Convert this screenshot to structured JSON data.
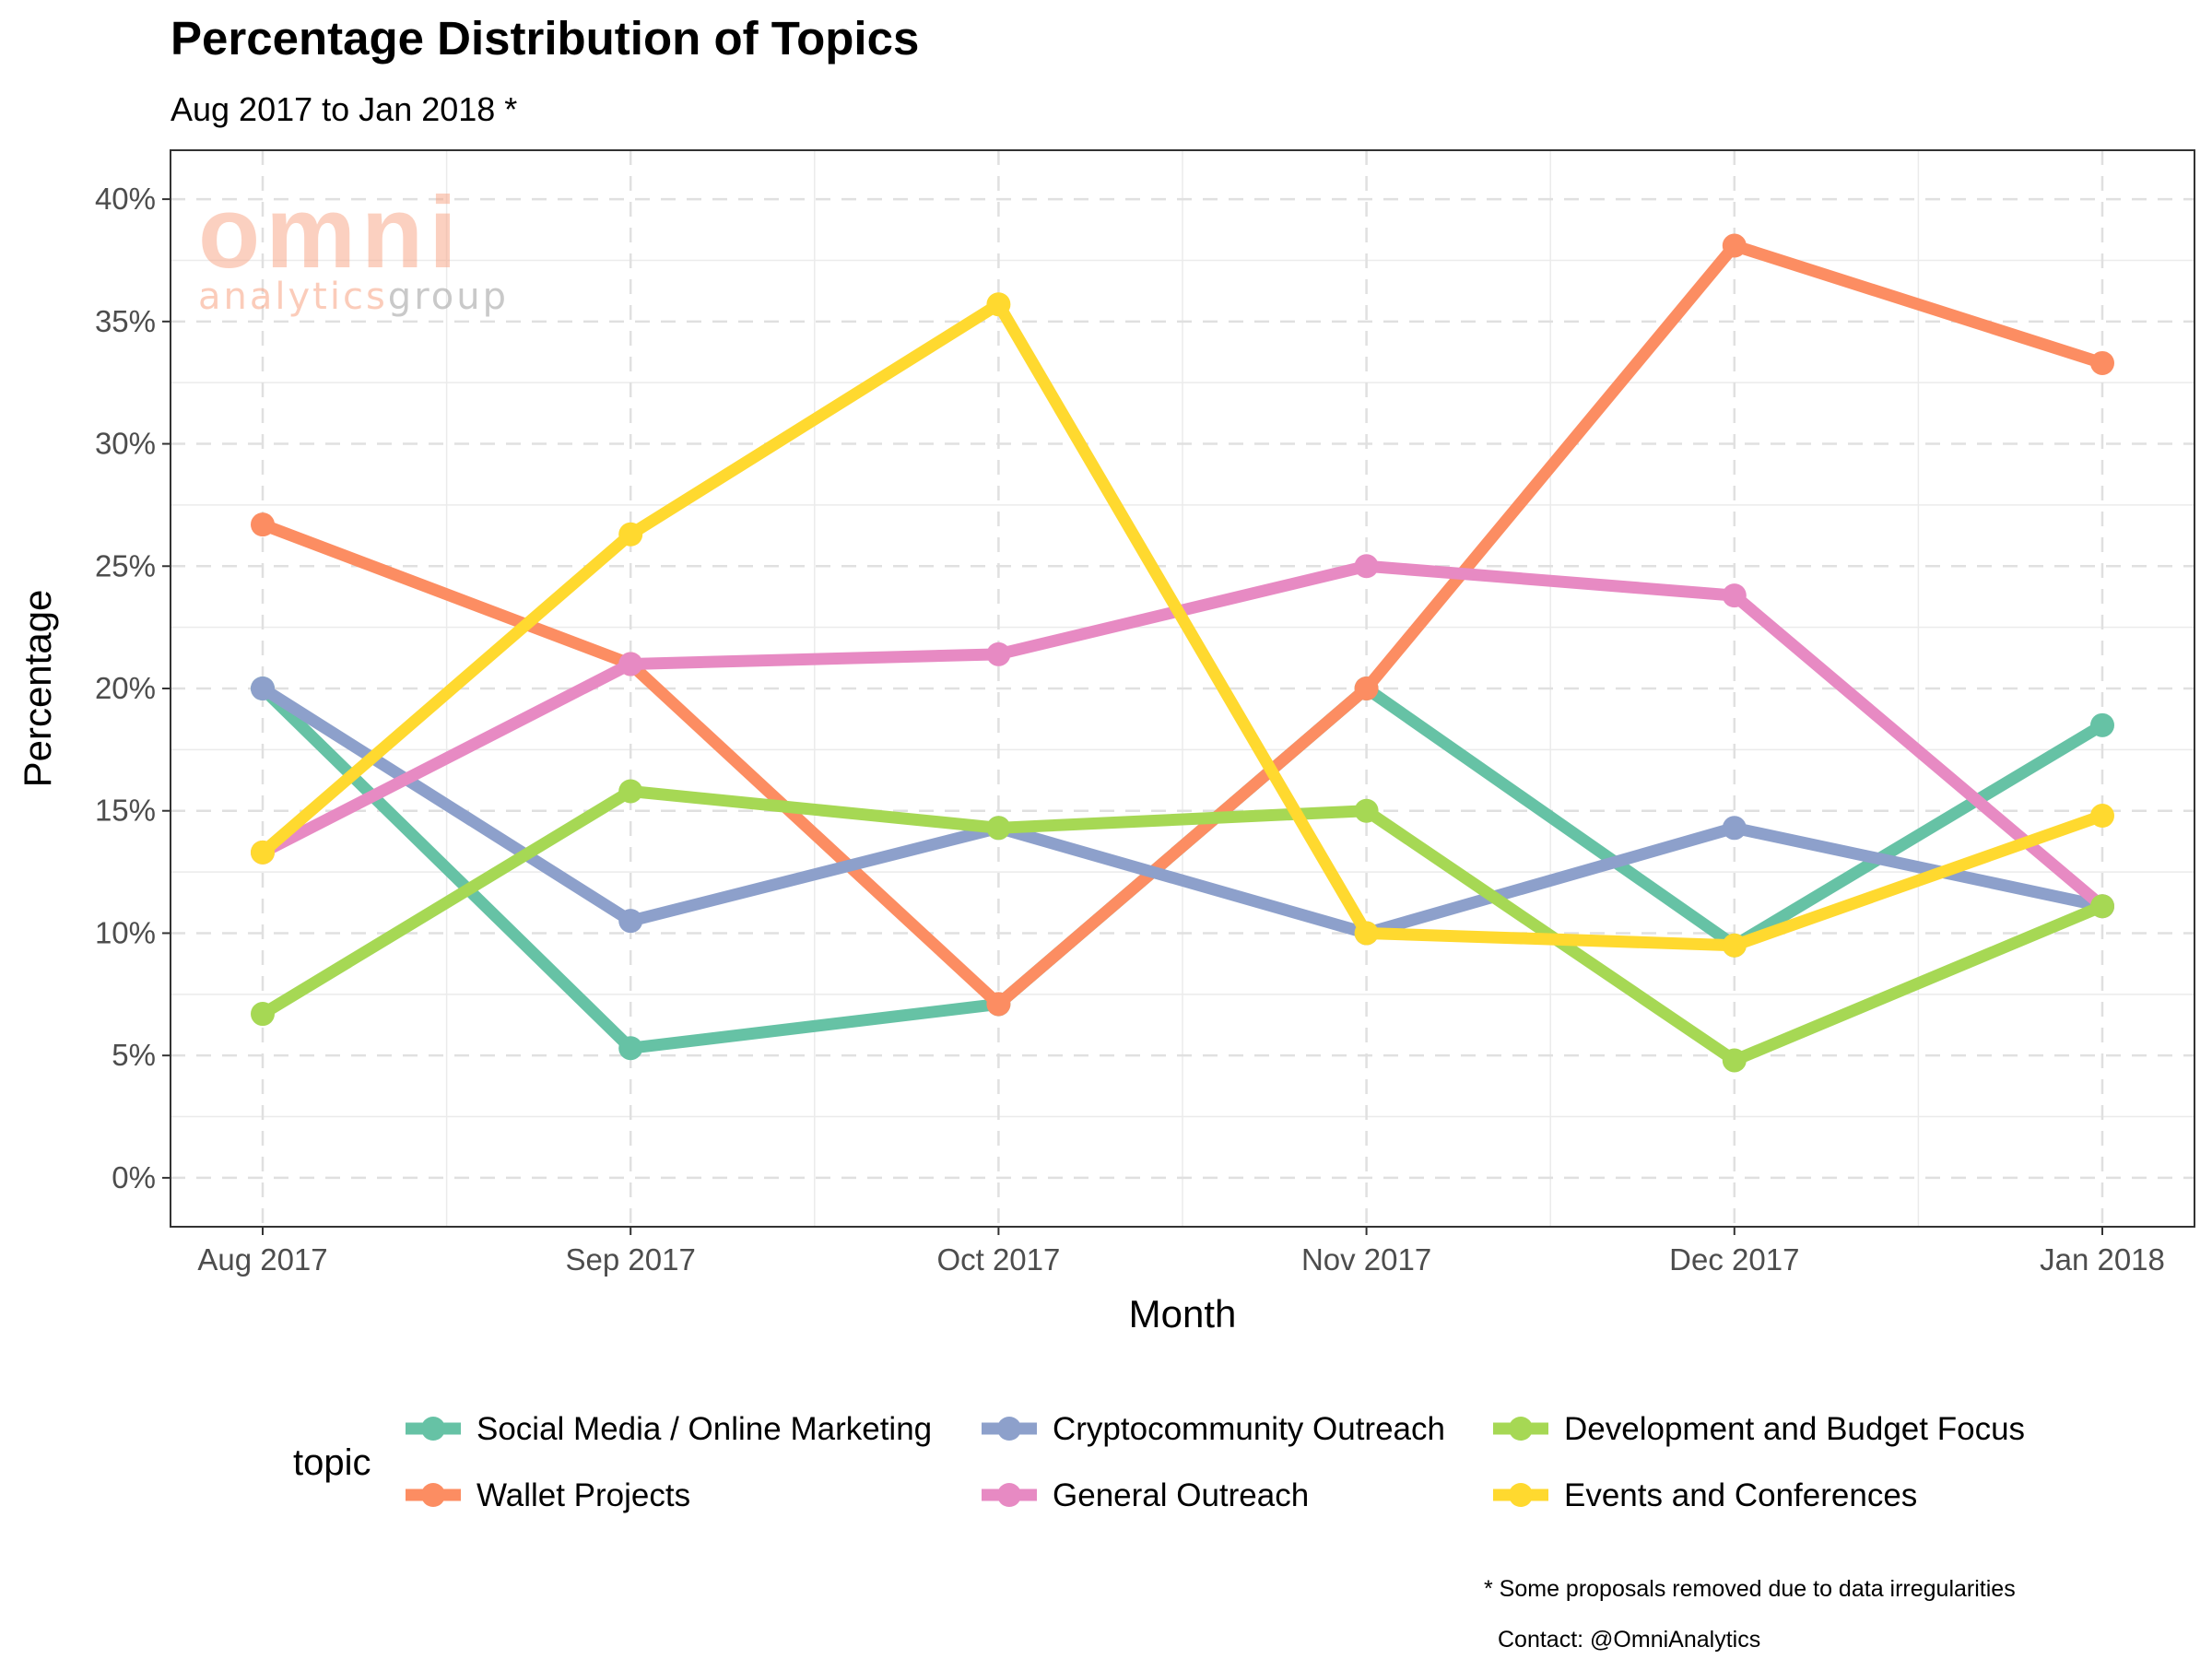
{
  "title": "Percentage Distribution of Topics",
  "subtitle": "Aug 2017 to Jan 2018 *",
  "footnote": "* Some proposals removed due to data irregularities",
  "contact": "Contact: @OmniAnalytics",
  "watermark": {
    "word": "omni",
    "tag_a": "analytics",
    "tag_b": "group",
    "color_a": "#f8a382",
    "color_b": "#9e9e9e"
  },
  "chart_data": {
    "type": "line",
    "xlabel": "Month",
    "ylabel": "Percentage",
    "legend_title": "topic",
    "legend_position": "bottom",
    "categories": [
      "Aug 2017",
      "Sep 2017",
      "Oct 2017",
      "Nov 2017",
      "Dec 2017",
      "Jan 2018"
    ],
    "ylim": [
      -2,
      42
    ],
    "yticks": [
      0,
      5,
      10,
      15,
      20,
      25,
      30,
      35,
      40
    ],
    "ytick_labels": [
      "0%",
      "5%",
      "10%",
      "15%",
      "20%",
      "25%",
      "30%",
      "35%",
      "40%"
    ],
    "grid": true,
    "series": [
      {
        "name": "Social Media / Online Marketing",
        "color": "#66c2a5",
        "values": [
          20.0,
          5.3,
          7.1,
          20.0,
          9.5,
          18.5
        ]
      },
      {
        "name": "Wallet Projects",
        "color": "#fc8d62",
        "values": [
          26.7,
          21.0,
          7.1,
          20.0,
          38.1,
          33.3
        ]
      },
      {
        "name": "Cryptocommunity Outreach",
        "color": "#8da0cb",
        "values": [
          20.0,
          10.5,
          14.3,
          10.0,
          14.3,
          11.1
        ]
      },
      {
        "name": "General Outreach",
        "color": "#e78ac3",
        "values": [
          13.3,
          21.0,
          21.4,
          25.0,
          23.8,
          11.1
        ]
      },
      {
        "name": "Development and Budget Focus",
        "color": "#a6d854",
        "values": [
          6.7,
          15.8,
          14.3,
          15.0,
          4.8,
          11.1
        ]
      },
      {
        "name": "Events and Conferences",
        "color": "#ffd92f",
        "values": [
          13.3,
          26.3,
          35.7,
          10.0,
          9.5,
          14.8
        ]
      }
    ]
  }
}
